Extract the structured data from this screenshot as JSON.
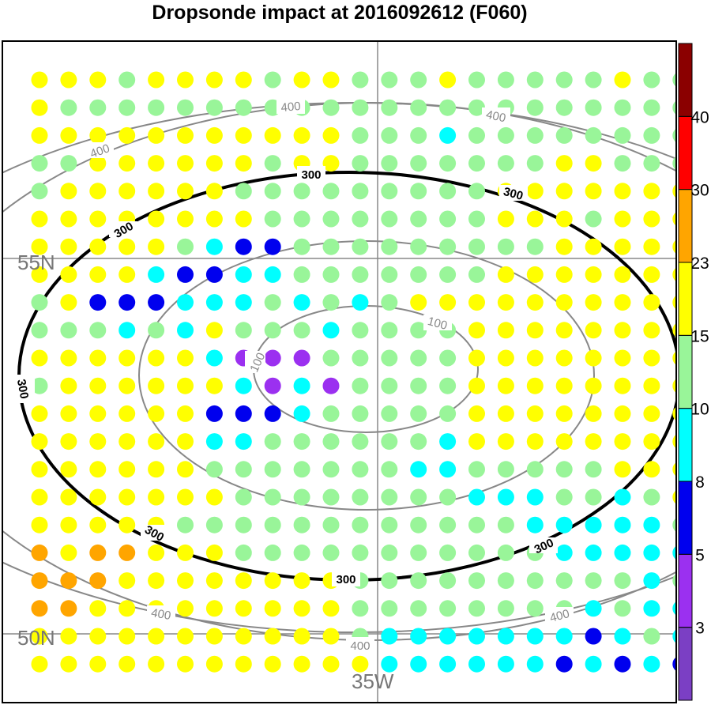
{
  "title": "Dropsonde impact at 2016092612 (F060)",
  "chart_data": {
    "type": "scatter",
    "title": "Dropsonde impact at 2016092612 (F060)",
    "latitude_labels": [
      "55N",
      "50N"
    ],
    "longitude_labels": [
      "35W"
    ],
    "contour_labels": {
      "c100": "100",
      "c300": "300",
      "c400": "400"
    },
    "colorbar": {
      "boundaries": [
        3,
        5,
        8,
        10,
        15,
        23,
        30,
        40
      ],
      "tick_labels": [
        "3",
        "5",
        "8",
        "10",
        "15",
        "23",
        "30",
        "40"
      ],
      "colors": [
        "#7b3fc4",
        "#9b30f0",
        "#0000ee",
        "#00ffff",
        "#99f599",
        "#ffff00",
        "#ffa500",
        "#ff0000",
        "#8b0000"
      ]
    },
    "color_classes": {
      "P": "#9b30f0",
      "B": "#0000ee",
      "C": "#00ffff",
      "G": "#99f599",
      "Y": "#ffff00",
      "O": "#ffa500"
    },
    "grid_rows": [
      "YYYGYYYYGYYGGGYGGGGGYGG",
      "YGGGGGGGGGGGGGGGGGGGGGG",
      "YYYYYYYYYYYGGGCGGGGGGGG",
      "GGYYYYYYGYYGGGGGGGYYGGG",
      "GYYYYYYGGGGGGGGGYYYYYYY",
      "YYYYYYYYGGGGGGGGYYYGYYY",
      "YYYYYGCBBGGGGGGGGGYYYYY",
      "YYYYCBBCCGGGGGGGYYYYYYY",
      "GYBBBCCCGCGCGYYYYYYYYYY",
      "GGGCGCYGGGCGGGGYYYYYYYY",
      "YYYYYYCPPPGGGGGYYYYYYYY",
      "GYYYYYYCPCPGGGGYYYYYYYY",
      "YYYYYYBBBCGGGGGYYYYYYYY",
      "YYYYYYCCGGGGGGCYYYYYYYY",
      "YYYYYYGGGGGGGCCGGGGGYYY",
      "YYYYYYYGGGGGGGGCCCGGCGY",
      "YYYYYGGGGGGGGGGGGCCCCCG",
      "OYOOYYYGGGGGGGGGGGCCCCC",
      "OOOYYYYYYYYGGGGGGGGGGCG",
      "OOYYYYYYYYYGGGGGGGGCGCC",
      "YYYYYYYYYYYGCCCCCCCBCGC",
      "YYYYYYYYYYYYCCCCCCBCBCB"
    ]
  }
}
